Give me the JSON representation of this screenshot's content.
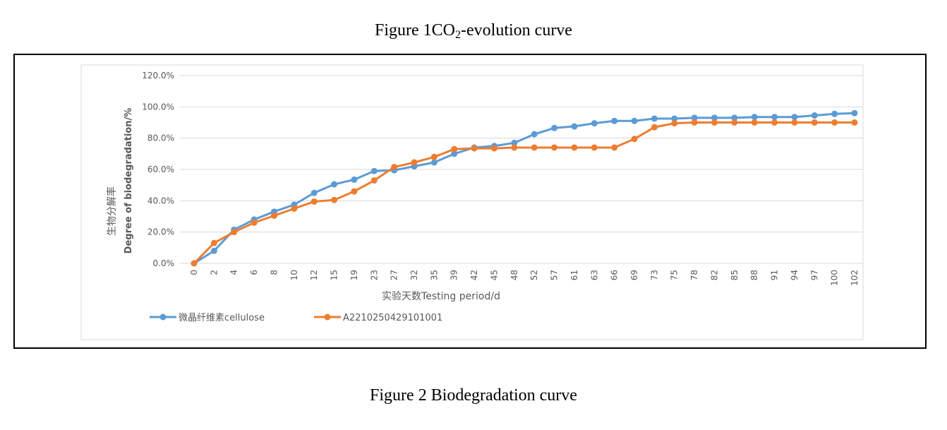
{
  "figure_titles": {
    "top_prefix": "Figure 1CO",
    "top_subscript": "2",
    "top_suffix": "-evolution curve",
    "bottom": "Figure 2 Biodegradation curve"
  },
  "colors": {
    "cellulose": "#5b9bd5",
    "sample": "#ed7d31",
    "grid": "#d9d9d9",
    "axis_text": "#595959"
  },
  "chart_data": {
    "type": "line",
    "title": "",
    "xlabel": "实验天数Testing period/d",
    "ylabel_line1": "生物分解率",
    "ylabel_line2": "Degree of biodegradation/%",
    "ylim": [
      0,
      120
    ],
    "yticks": [
      "0.0%",
      "20.0%",
      "40.0%",
      "60.0%",
      "80.0%",
      "100.0%",
      "120.0%"
    ],
    "grid": true,
    "legend_position": "bottom-left",
    "categories": [
      "0",
      "2",
      "4",
      "6",
      "8",
      "10",
      "12",
      "15",
      "19",
      "23",
      "27",
      "32",
      "35",
      "39",
      "42",
      "45",
      "48",
      "52",
      "57",
      "61",
      "63",
      "66",
      "69",
      "73",
      "75",
      "78",
      "82",
      "85",
      "88",
      "91",
      "94",
      "97",
      "100",
      "102"
    ],
    "series": [
      {
        "name": "微晶纤维素cellulose",
        "values": [
          0,
          8,
          21.5,
          28,
          33,
          37.5,
          45,
          50.5,
          53.5,
          59,
          59.5,
          62,
          64.5,
          70,
          74,
          75,
          77,
          82.5,
          86.5,
          87.5,
          89.5,
          91,
          91,
          92.5,
          92.5,
          93,
          93,
          93,
          93.5,
          93.5,
          93.5,
          94.5,
          95.5,
          96
        ]
      },
      {
        "name": "A2210250429101001",
        "values": [
          0,
          13,
          20,
          26,
          30.5,
          35,
          39.5,
          40.5,
          46,
          53,
          61.5,
          64.5,
          68,
          73,
          73.5,
          73.5,
          74,
          74,
          74,
          74,
          74,
          74,
          79.5,
          87,
          89.5,
          90,
          90,
          90,
          90,
          90,
          90,
          90,
          90,
          90
        ]
      }
    ]
  }
}
